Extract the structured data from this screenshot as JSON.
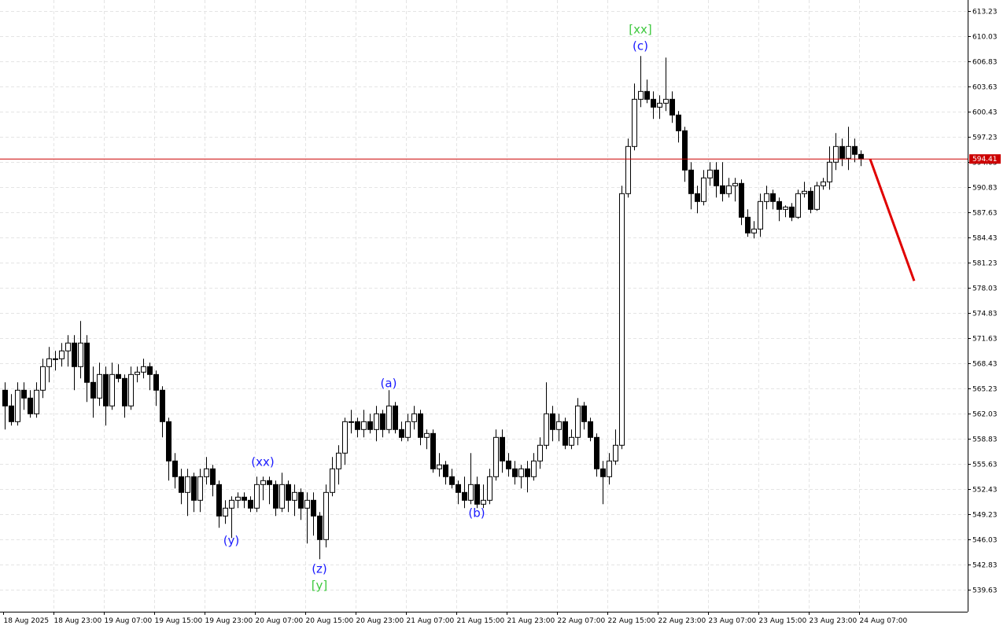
{
  "chart_data": {
    "type": "candlestick",
    "ylim": [
      536.83,
      614.63
    ],
    "yticks": [
      613.23,
      610.03,
      606.83,
      603.63,
      600.43,
      597.23,
      594.03,
      590.83,
      587.63,
      584.43,
      581.23,
      578.03,
      574.83,
      571.63,
      568.43,
      565.23,
      562.03,
      558.83,
      555.63,
      552.43,
      549.23,
      546.03,
      542.83,
      539.63
    ],
    "grid": true,
    "xlabels": [
      "18 Aug 2025",
      "18 Aug 23:00",
      "19 Aug 07:00",
      "19 Aug 15:00",
      "19 Aug 23:00",
      "20 Aug 07:00",
      "20 Aug 15:00",
      "20 Aug 23:00",
      "21 Aug 07:00",
      "21 Aug 15:00",
      "21 Aug 23:00",
      "22 Aug 07:00",
      "22 Aug 15:00",
      "22 Aug 23:00",
      "23 Aug 07:00",
      "23 Aug 15:00",
      "23 Aug 23:00",
      "24 Aug 07:00"
    ],
    "up_color": "#ffffff",
    "down_color": "#000000",
    "ohlc": [
      [
        565,
        566,
        560,
        563
      ],
      [
        563,
        564.5,
        560.5,
        561
      ],
      [
        561,
        566,
        560.5,
        565
      ],
      [
        565,
        566,
        562.5,
        564
      ],
      [
        564,
        565,
        561.5,
        562
      ],
      [
        562,
        566,
        561.5,
        565
      ],
      [
        565,
        569,
        564,
        568
      ],
      [
        568,
        570.5,
        566,
        569
      ],
      [
        569,
        570,
        567.5,
        569
      ],
      [
        569,
        571,
        568,
        570
      ],
      [
        570,
        572,
        568,
        571
      ],
      [
        571,
        572,
        565,
        568
      ],
      [
        568,
        573.8,
        566.5,
        571
      ],
      [
        571,
        572,
        563.5,
        566
      ],
      [
        566,
        568,
        561.5,
        564
      ],
      [
        564,
        568.5,
        563,
        567
      ],
      [
        567,
        568,
        560.5,
        563
      ],
      [
        563,
        568.5,
        562.5,
        567
      ],
      [
        567,
        568.3,
        566,
        566.5
      ],
      [
        566.5,
        567,
        561.5,
        563
      ],
      [
        563,
        568,
        562.5,
        567
      ],
      [
        567,
        568,
        566,
        567.3
      ],
      [
        567.3,
        569,
        566.5,
        568
      ],
      [
        568,
        568.5,
        565,
        567
      ],
      [
        567,
        567.5,
        563,
        565
      ],
      [
        565,
        565.5,
        559,
        561
      ],
      [
        561,
        561.5,
        553.5,
        556
      ],
      [
        556,
        557,
        552.5,
        554
      ],
      [
        554,
        555,
        550.5,
        552
      ],
      [
        552,
        555,
        549,
        554
      ],
      [
        554,
        554.5,
        549.5,
        551
      ],
      [
        551,
        555,
        549.5,
        554
      ],
      [
        554,
        556.5,
        553,
        555
      ],
      [
        555,
        555.5,
        551.5,
        553
      ],
      [
        553,
        553.5,
        547.5,
        549
      ],
      [
        549,
        551,
        548,
        550
      ],
      [
        550,
        551.5,
        546.2,
        551
      ],
      [
        551,
        552,
        550,
        551.4
      ],
      [
        551.4,
        552,
        550,
        551
      ],
      [
        551,
        551.5,
        549.5,
        550
      ],
      [
        550,
        554,
        549.5,
        553
      ],
      [
        553,
        554,
        551,
        553.5
      ],
      [
        553.5,
        554,
        550.5,
        553
      ],
      [
        553,
        553.5,
        549,
        550
      ],
      [
        550,
        554.5,
        549.5,
        553
      ],
      [
        553,
        553.5,
        549.5,
        551
      ],
      [
        551,
        553,
        549,
        552
      ],
      [
        552,
        552.5,
        548.5,
        550
      ],
      [
        550,
        552,
        545.5,
        551
      ],
      [
        551,
        552,
        546.5,
        549
      ],
      [
        549,
        549.5,
        543.5,
        546
      ],
      [
        546,
        553,
        545,
        552
      ],
      [
        552,
        556.5,
        551.5,
        555
      ],
      [
        555,
        558,
        553,
        557
      ],
      [
        557,
        561.5,
        555.5,
        561
      ],
      [
        561,
        562.5,
        559.5,
        561
      ],
      [
        561,
        561.5,
        559,
        560
      ],
      [
        560,
        562.5,
        559,
        561
      ],
      [
        561,
        562,
        559.5,
        560
      ],
      [
        560,
        563,
        558.5,
        562
      ],
      [
        562,
        562.5,
        559,
        560
      ],
      [
        560,
        565,
        559.5,
        563
      ],
      [
        563,
        563.5,
        559.5,
        560
      ],
      [
        560,
        561,
        558.5,
        559
      ],
      [
        559,
        562,
        558.5,
        561
      ],
      [
        561,
        563,
        560,
        562
      ],
      [
        562,
        562.5,
        558,
        559
      ],
      [
        559,
        560,
        557.5,
        559.5
      ],
      [
        559.5,
        560,
        554.5,
        555
      ],
      [
        555,
        557,
        554,
        555.5
      ],
      [
        555.5,
        556,
        553,
        554
      ],
      [
        554,
        555,
        552.5,
        553
      ],
      [
        553,
        553.5,
        550.5,
        552
      ],
      [
        552,
        554,
        550,
        551
      ],
      [
        551,
        557,
        550.5,
        553
      ],
      [
        553,
        554,
        550,
        550.5
      ],
      [
        550.5,
        553,
        550,
        551
      ],
      [
        551,
        555,
        550.5,
        554
      ],
      [
        554,
        560,
        553.5,
        559
      ],
      [
        559,
        560,
        554.5,
        556
      ],
      [
        556,
        557,
        554,
        555
      ],
      [
        555,
        556,
        553,
        554
      ],
      [
        554,
        555.5,
        552.5,
        555
      ],
      [
        555,
        556,
        552,
        554
      ],
      [
        554,
        557,
        553.5,
        556
      ],
      [
        556,
        559,
        555,
        558
      ],
      [
        558,
        566,
        557.5,
        562
      ],
      [
        562,
        563,
        558.5,
        560
      ],
      [
        560,
        562,
        558.5,
        561
      ],
      [
        561,
        561.5,
        557.5,
        558
      ],
      [
        558,
        560,
        557.5,
        559
      ],
      [
        559,
        564,
        558,
        563
      ],
      [
        563,
        563.5,
        560,
        561
      ],
      [
        561,
        561.5,
        558.5,
        559
      ],
      [
        559,
        559.5,
        554,
        555
      ],
      [
        555,
        556,
        550.5,
        554
      ],
      [
        554,
        557,
        553,
        556
      ],
      [
        556,
        560,
        555.5,
        558
      ],
      [
        558,
        591,
        557.5,
        590
      ],
      [
        590,
        597,
        589.5,
        596
      ],
      [
        596,
        604,
        595.5,
        602
      ],
      [
        602,
        607.5,
        601,
        603
      ],
      [
        603,
        604.5,
        601.5,
        602
      ],
      [
        602,
        603,
        599.5,
        601
      ],
      [
        601,
        602.5,
        599.5,
        601.5
      ],
      [
        601.5,
        607.3,
        600.5,
        602
      ],
      [
        602,
        603,
        599,
        600
      ],
      [
        600,
        600.5,
        596.5,
        598
      ],
      [
        598,
        598.5,
        591.5,
        593
      ],
      [
        593,
        594,
        588,
        590
      ],
      [
        590,
        591,
        587.5,
        589
      ],
      [
        589,
        593,
        588.5,
        592
      ],
      [
        592,
        594,
        591,
        593
      ],
      [
        593,
        594,
        589.5,
        591
      ],
      [
        591,
        594,
        589,
        590
      ],
      [
        590,
        592,
        589.5,
        591
      ],
      [
        591,
        592,
        589,
        591.3
      ],
      [
        591.3,
        591.8,
        586,
        587
      ],
      [
        587,
        588,
        584.5,
        585
      ],
      [
        585,
        586.5,
        584.3,
        585.5
      ],
      [
        585.5,
        590,
        584.5,
        589
      ],
      [
        589,
        591,
        588,
        590
      ],
      [
        590,
        590.5,
        588,
        589
      ],
      [
        589,
        589.5,
        586.5,
        588
      ],
      [
        588,
        588.5,
        587,
        588.3
      ],
      [
        588.3,
        588.8,
        586.5,
        587
      ],
      [
        587,
        590.5,
        586.8,
        590
      ],
      [
        590,
        591.5,
        589.5,
        590.3
      ],
      [
        590.3,
        590.8,
        587.5,
        588
      ],
      [
        588,
        591.5,
        587.8,
        591
      ],
      [
        591,
        592,
        590.5,
        591.5
      ],
      [
        591.5,
        596,
        590.5,
        594
      ],
      [
        594,
        597.7,
        593,
        596
      ],
      [
        596,
        597,
        593.5,
        594.5
      ],
      [
        594.5,
        598.5,
        593,
        596
      ],
      [
        596,
        597,
        594,
        595
      ],
      [
        595,
        595.5,
        593.5,
        594.41
      ]
    ],
    "price_line": {
      "value": 594.41,
      "label": "594.41",
      "color": "#cc0000"
    },
    "forecast": {
      "from": [
        137.5,
        594.41
      ],
      "to": [
        144.5,
        578.9
      ],
      "color": "#e00000"
    },
    "annotations": [
      {
        "text": "[xx]",
        "candle": 101,
        "price": 610.9,
        "color": "#3cc83c"
      },
      {
        "text": "(c)",
        "candle": 101,
        "price": 608.8,
        "color": "#1a1aff"
      },
      {
        "text": "(a)",
        "candle": 61,
        "price": 565.9,
        "color": "#1a1aff"
      },
      {
        "text": "(xx)",
        "candle": 41,
        "price": 555.9,
        "color": "#1a1aff"
      },
      {
        "text": "(y)",
        "candle": 36,
        "price": 545.9,
        "color": "#1a1aff"
      },
      {
        "text": "(z)",
        "candle": 50,
        "price": 542.3,
        "color": "#1a1aff"
      },
      {
        "text": "[y]",
        "candle": 50,
        "price": 540.2,
        "color": "#3cc83c"
      },
      {
        "text": "(b)",
        "candle": 75,
        "price": 549.4,
        "color": "#1a1aff"
      }
    ]
  }
}
